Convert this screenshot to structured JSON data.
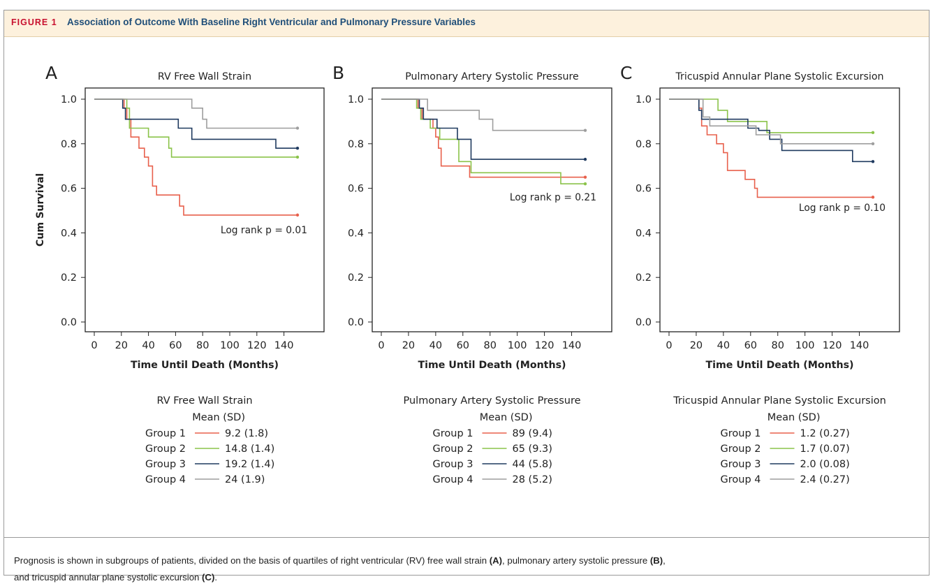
{
  "figure": {
    "label": "FIGURE 1",
    "title": "Association of Outcome With Baseline Right Ventricular and Pulmonary Pressure Variables"
  },
  "caption": {
    "part1": "Prognosis is shown in subgroups of patients, divided on the basis of quartiles of right ventricular (RV) free wall strain ",
    "a": "(A)",
    "part2": ", pulmonary artery systolic pressure ",
    "b": "(B)",
    "part3": ",",
    "line2a": "and tricuspid annular plane systolic excursion ",
    "c": "(C)",
    "line2b": "."
  },
  "colors": {
    "group1": "#e8604c",
    "group2": "#8bc34a",
    "group3": "#1f3a5f",
    "group4": "#9e9e9e"
  },
  "chart_data": [
    {
      "type": "line",
      "panel": "A",
      "title": "RV Free Wall Strain",
      "xlabel": "Time Until Death (Months)",
      "ylabel": "Cum Survival",
      "xlim": [
        0,
        150
      ],
      "ylim": [
        0,
        1.0
      ],
      "xticks": [
        0,
        20,
        40,
        60,
        80,
        100,
        120,
        140
      ],
      "yticks": [
        0.0,
        0.2,
        0.4,
        0.6,
        0.8,
        1.0
      ],
      "annotation": "Log rank p = 0.01",
      "legend_title": "RV Free Wall Strain",
      "legend_subtitle": "Mean (SD)",
      "series": [
        {
          "name": "Group 1",
          "color": "#e8604c",
          "label": "9.2 (1.8)",
          "x": [
            0,
            22,
            24,
            27,
            33,
            37,
            40,
            43,
            46,
            63,
            66,
            150
          ],
          "y": [
            1.0,
            0.96,
            0.91,
            0.83,
            0.78,
            0.74,
            0.7,
            0.61,
            0.57,
            0.52,
            0.48,
            0.48
          ]
        },
        {
          "name": "Group 2",
          "color": "#8bc34a",
          "label": "14.8 (1.4)",
          "x": [
            0,
            24,
            26,
            40,
            55,
            57,
            150
          ],
          "y": [
            1.0,
            0.96,
            0.87,
            0.83,
            0.78,
            0.74,
            0.74
          ]
        },
        {
          "name": "Group 3",
          "color": "#1f3a5f",
          "label": "19.2 (1.4)",
          "x": [
            0,
            21,
            23,
            62,
            72,
            134,
            150
          ],
          "y": [
            1.0,
            0.96,
            0.91,
            0.87,
            0.82,
            0.78,
            0.78
          ]
        },
        {
          "name": "Group 4",
          "color": "#9e9e9e",
          "label": "24 (1.9)",
          "x": [
            0,
            72,
            80,
            83,
            150
          ],
          "y": [
            1.0,
            0.96,
            0.91,
            0.87,
            0.87
          ]
        }
      ]
    },
    {
      "type": "line",
      "panel": "B",
      "title": "Pulmonary Artery Systolic Pressure",
      "xlabel": "Time Until Death (Months)",
      "ylabel": "",
      "xlim": [
        0,
        150
      ],
      "ylim": [
        0,
        1.0
      ],
      "xticks": [
        0,
        20,
        40,
        60,
        80,
        100,
        120,
        140
      ],
      "yticks": [
        0.0,
        0.2,
        0.4,
        0.6,
        0.8,
        1.0
      ],
      "annotation": "Log rank p = 0.21",
      "legend_title": "Pulmonary Artery Systolic Pressure",
      "legend_subtitle": "Mean (SD)",
      "series": [
        {
          "name": "Group 1",
          "color": "#e8604c",
          "label": "89 (9.4)",
          "x": [
            0,
            27,
            30,
            38,
            40,
            42,
            44,
            65,
            150
          ],
          "y": [
            1.0,
            0.96,
            0.91,
            0.87,
            0.83,
            0.78,
            0.7,
            0.65,
            0.65
          ]
        },
        {
          "name": "Group 2",
          "color": "#8bc34a",
          "label": "65 (9.3)",
          "x": [
            0,
            26,
            29,
            36,
            43,
            57,
            66,
            132,
            150
          ],
          "y": [
            1.0,
            0.96,
            0.91,
            0.87,
            0.82,
            0.72,
            0.67,
            0.62,
            0.62
          ]
        },
        {
          "name": "Group 3",
          "color": "#1f3a5f",
          "label": "44 (5.8)",
          "x": [
            0,
            28,
            31,
            41,
            56,
            66,
            150
          ],
          "y": [
            1.0,
            0.96,
            0.91,
            0.87,
            0.82,
            0.73,
            0.73
          ]
        },
        {
          "name": "Group 4",
          "color": "#9e9e9e",
          "label": "28 (5.2)",
          "x": [
            0,
            34,
            72,
            82,
            150
          ],
          "y": [
            1.0,
            0.95,
            0.91,
            0.86,
            0.86
          ]
        }
      ]
    },
    {
      "type": "line",
      "panel": "C",
      "title": "Tricuspid Annular Plane Systolic Excursion",
      "xlabel": "Time Until Death (Months)",
      "ylabel": "",
      "xlim": [
        0,
        150
      ],
      "ylim": [
        0,
        1.0
      ],
      "xticks": [
        0,
        20,
        40,
        60,
        80,
        100,
        120,
        140
      ],
      "yticks": [
        0.0,
        0.2,
        0.4,
        0.6,
        0.8,
        1.0
      ],
      "annotation": "Log rank p = 0.10",
      "legend_title": "Tricuspid Annular Plane Systolic Excursion",
      "legend_subtitle": "Mean (SD)",
      "series": [
        {
          "name": "Group 1",
          "color": "#e8604c",
          "label": "1.2 (0.27)",
          "x": [
            0,
            22,
            24,
            28,
            35,
            40,
            43,
            56,
            63,
            65,
            150
          ],
          "y": [
            1.0,
            0.96,
            0.88,
            0.84,
            0.8,
            0.76,
            0.68,
            0.64,
            0.6,
            0.56,
            0.56
          ]
        },
        {
          "name": "Group 2",
          "color": "#8bc34a",
          "label": "1.7 (0.07)",
          "x": [
            0,
            30,
            36,
            43,
            72,
            150
          ],
          "y": [
            1.0,
            1.0,
            0.95,
            0.9,
            0.85,
            0.85
          ]
        },
        {
          "name": "Group 3",
          "color": "#1f3a5f",
          "label": "2.0 (0.08)",
          "x": [
            0,
            22,
            24,
            46,
            58,
            66,
            74,
            83,
            135,
            150
          ],
          "y": [
            1.0,
            0.95,
            0.91,
            0.91,
            0.87,
            0.86,
            0.82,
            0.77,
            0.72,
            0.72
          ]
        },
        {
          "name": "Group 4",
          "color": "#9e9e9e",
          "label": "2.4 (0.27)",
          "x": [
            0,
            25,
            30,
            55,
            64,
            82,
            150
          ],
          "y": [
            1.0,
            0.92,
            0.88,
            0.88,
            0.84,
            0.8,
            0.8
          ]
        }
      ]
    }
  ]
}
